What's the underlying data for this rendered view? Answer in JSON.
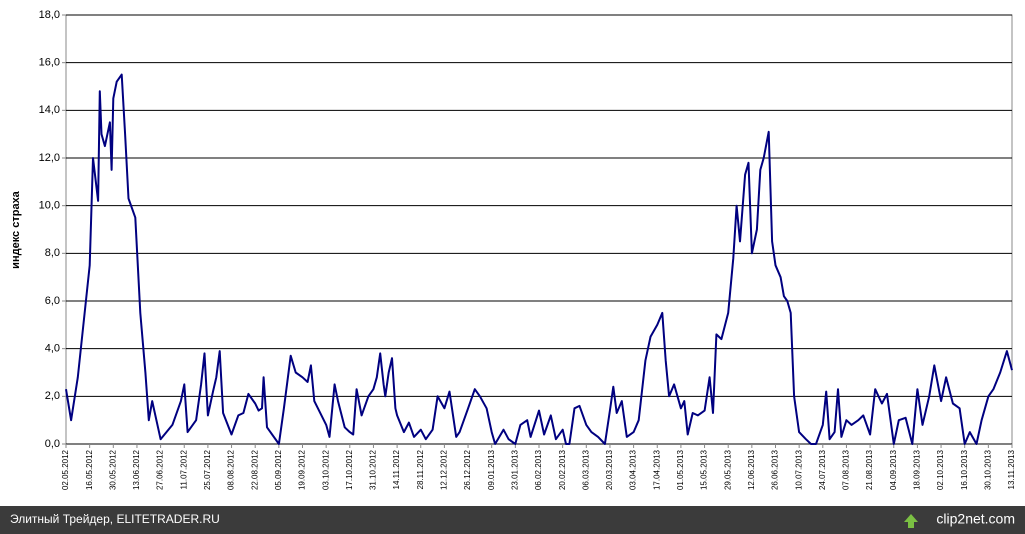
{
  "chart_data": {
    "type": "line",
    "y_label": "индекс страха",
    "color": "#000080",
    "grid": true,
    "xlim": [
      "02.05.2012",
      "13.11.2013"
    ],
    "xticks": [
      "02.05.2012",
      "16.05.2012",
      "30.05.2012",
      "13.06.2012",
      "27.06.2012",
      "11.07.2012",
      "25.07.2012",
      "08.08.2012",
      "22.08.2012",
      "05.09.2012",
      "19.09.2012",
      "03.10.2012",
      "17.10.2012",
      "31.10.2012",
      "14.11.2012",
      "28.11.2012",
      "12.12.2012",
      "26.12.2012",
      "09.01.2013",
      "23.01.2013",
      "06.02.2013",
      "20.02.2013",
      "06.03.2013",
      "20.03.2013",
      "03.04.2013",
      "17.04.2013",
      "01.05.2013",
      "15.05.2013",
      "29.05.2013",
      "12.06.2013",
      "26.06.2013",
      "10.07.2013",
      "24.07.2013",
      "07.08.2013",
      "21.08.2013",
      "04.09.2013",
      "18.09.2013",
      "02.10.2013",
      "16.10.2013",
      "30.10.2013",
      "13.11.2013"
    ],
    "ylim": [
      0,
      18
    ],
    "yticks": [
      {
        "value": 0,
        "label": "0,0"
      },
      {
        "value": 2,
        "label": "2,0"
      },
      {
        "value": 4,
        "label": "4,0"
      },
      {
        "value": 6,
        "label": "6,0"
      },
      {
        "value": 8,
        "label": "8,0"
      },
      {
        "value": 10,
        "label": "10,0"
      },
      {
        "value": 12,
        "label": "12,0"
      },
      {
        "value": 14,
        "label": "14,0"
      },
      {
        "value": 16,
        "label": "16,0"
      },
      {
        "value": 18,
        "label": "18,0"
      }
    ],
    "x": [
      "02.05.2012",
      "05.05.2012",
      "09.05.2012",
      "16.05.2012",
      "18.05.2012",
      "21.05.2012",
      "22.05.2012",
      "23.05.2012",
      "25.05.2012",
      "28.05.2012",
      "29.05.2012",
      "30.05.2012",
      "01.06.2012",
      "04.06.2012",
      "06.06.2012",
      "08.06.2012",
      "12.06.2012",
      "15.06.2012",
      "18.06.2012",
      "20.06.2012",
      "22.06.2012",
      "27.06.2012",
      "04.07.2012",
      "09.07.2012",
      "11.07.2012",
      "13.07.2012",
      "18.07.2012",
      "21.07.2012",
      "23.07.2012",
      "25.07.2012",
      "28.07.2012",
      "30.07.2012",
      "01.08.2012",
      "03.08.2012",
      "08.08.2012",
      "12.08.2012",
      "15.08.2012",
      "18.08.2012",
      "22.08.2012",
      "24.08.2012",
      "26.08.2012",
      "27.08.2012",
      "29.08.2012",
      "05.09.2012",
      "08.09.2012",
      "12.09.2012",
      "15.09.2012",
      "19.09.2012",
      "22.09.2012",
      "24.09.2012",
      "26.09.2012",
      "03.10.2012",
      "05.10.2012",
      "08.10.2012",
      "10.10.2012",
      "14.10.2012",
      "17.10.2012",
      "19.10.2012",
      "21.10.2012",
      "24.10.2012",
      "28.10.2012",
      "31.10.2012",
      "02.11.2012",
      "04.11.2012",
      "06.11.2012",
      "07.11.2012",
      "09.11.2012",
      "11.11.2012",
      "13.11.2012",
      "14.11.2012",
      "18.11.2012",
      "21.11.2012",
      "24.11.2012",
      "28.11.2012",
      "01.12.2012",
      "05.12.2012",
      "08.12.2012",
      "12.12.2012",
      "15.12.2012",
      "19.12.2012",
      "21.12.2012",
      "26.12.2012",
      "30.12.2012",
      "02.01.2013",
      "06.01.2013",
      "09.01.2013",
      "11.01.2013",
      "16.01.2013",
      "19.01.2013",
      "23.01.2013",
      "26.01.2013",
      "30.01.2013",
      "01.02.2013",
      "06.02.2013",
      "09.02.2013",
      "13.02.2013",
      "16.02.2013",
      "20.02.2013",
      "22.02.2013",
      "24.02.2013",
      "27.02.2013",
      "02.03.2013",
      "06.03.2013",
      "09.03.2013",
      "13.03.2013",
      "17.03.2013",
      "20.03.2013",
      "22.03.2013",
      "24.03.2013",
      "27.03.2013",
      "30.03.2013",
      "03.04.2013",
      "06.04.2013",
      "10.04.2013",
      "13.04.2013",
      "17.04.2013",
      "20.04.2013",
      "22.04.2013",
      "24.04.2013",
      "27.04.2013",
      "01.05.2013",
      "03.05.2013",
      "05.05.2013",
      "08.05.2013",
      "11.05.2013",
      "15.05.2013",
      "18.05.2013",
      "20.05.2013",
      "22.05.2013",
      "25.05.2013",
      "29.05.2013",
      "01.06.2013",
      "03.06.2013",
      "05.06.2013",
      "08.06.2013",
      "10.06.2013",
      "12.06.2013",
      "15.06.2013",
      "17.06.2013",
      "19.06.2013",
      "22.06.2013",
      "24.06.2013",
      "26.06.2013",
      "29.06.2013",
      "01.07.2013",
      "03.07.2013",
      "05.07.2013",
      "07.07.2013",
      "10.07.2013",
      "14.07.2013",
      "17.07.2013",
      "20.07.2013",
      "24.07.2013",
      "26.07.2013",
      "28.07.2013",
      "31.07.2013",
      "02.08.2013",
      "04.08.2013",
      "07.08.2013",
      "10.08.2013",
      "14.08.2013",
      "17.08.2013",
      "21.08.2013",
      "24.08.2013",
      "28.08.2013",
      "31.08.2013",
      "04.09.2013",
      "07.09.2013",
      "11.09.2013",
      "15.09.2013",
      "18.09.2013",
      "21.09.2013",
      "25.09.2013",
      "28.09.2013",
      "02.10.2013",
      "05.10.2013",
      "09.10.2013",
      "13.10.2013",
      "16.10.2013",
      "19.10.2013",
      "23.10.2013",
      "26.10.2013",
      "30.10.2013",
      "02.11.2013",
      "06.11.2013",
      "10.11.2013",
      "13.11.2013"
    ],
    "values": [
      2.3,
      1.0,
      2.8,
      7.5,
      12.0,
      10.2,
      14.8,
      13.0,
      12.5,
      13.5,
      11.5,
      14.5,
      15.2,
      15.5,
      13.0,
      10.3,
      9.5,
      5.5,
      3.0,
      1.0,
      1.8,
      0.2,
      0.8,
      1.8,
      2.5,
      0.5,
      1.0,
      2.5,
      3.8,
      1.2,
      2.2,
      2.8,
      3.9,
      1.3,
      0.4,
      1.2,
      1.3,
      2.1,
      1.7,
      1.4,
      1.5,
      2.8,
      0.7,
      0.0,
      1.5,
      3.7,
      3.0,
      2.8,
      2.6,
      3.3,
      1.8,
      0.8,
      0.3,
      2.5,
      1.8,
      0.7,
      0.5,
      0.4,
      2.3,
      1.2,
      2.0,
      2.3,
      2.8,
      3.8,
      2.5,
      2.0,
      3.0,
      3.6,
      1.5,
      1.2,
      0.5,
      0.9,
      0.3,
      0.6,
      0.2,
      0.6,
      2.0,
      1.5,
      2.2,
      0.3,
      0.5,
      1.5,
      2.3,
      2.0,
      1.5,
      0.5,
      0.0,
      0.6,
      0.2,
      0.0,
      0.8,
      1.0,
      0.3,
      1.4,
      0.4,
      1.2,
      0.2,
      0.6,
      0.0,
      0.0,
      1.5,
      1.6,
      0.8,
      0.5,
      0.3,
      0.0,
      1.4,
      2.4,
      1.3,
      1.8,
      0.3,
      0.5,
      1.0,
      3.5,
      4.5,
      5.0,
      5.5,
      3.5,
      2.0,
      2.5,
      1.5,
      1.8,
      0.4,
      1.3,
      1.2,
      1.4,
      2.8,
      1.3,
      4.6,
      4.4,
      5.5,
      7.8,
      10.0,
      8.5,
      11.3,
      11.8,
      8.0,
      9.0,
      11.5,
      12.0,
      13.1,
      8.5,
      7.5,
      7.0,
      6.2,
      6.0,
      5.5,
      2.0,
      0.5,
      0.2,
      0.0,
      0.0,
      0.8,
      2.2,
      0.2,
      0.5,
      2.3,
      0.3,
      1.0,
      0.8,
      1.0,
      1.2,
      0.4,
      2.3,
      1.7,
      2.1,
      0.0,
      1.0,
      1.1,
      0.0,
      2.3,
      0.8,
      2.0,
      3.3,
      1.8,
      2.8,
      1.7,
      1.5,
      0.0,
      0.5,
      0.0,
      1.0,
      2.0,
      2.3,
      3.0,
      3.9,
      3.1
    ]
  },
  "footer": {
    "caption": "Элитный Трейдер, ELITETRADER.RU",
    "logo": "clip2net.com"
  }
}
